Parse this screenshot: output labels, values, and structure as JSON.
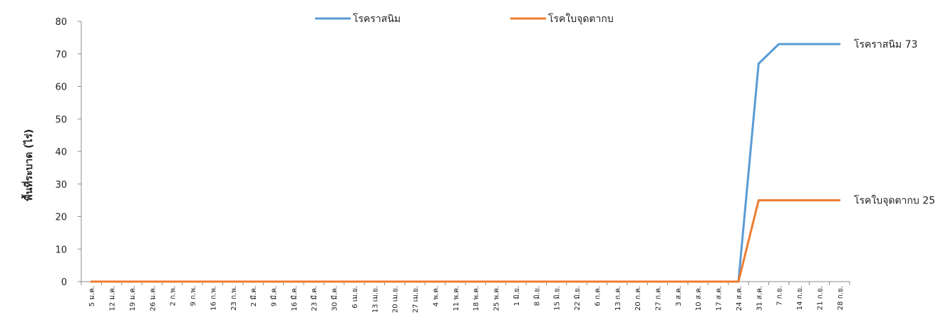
{
  "chart_data": {
    "type": "line",
    "ylabel": "พื้นที่ระบาด (ไร่)",
    "xlabel": "",
    "title": "",
    "ylim": [
      0,
      80
    ],
    "yticks": [
      0,
      10,
      20,
      30,
      40,
      50,
      60,
      70,
      80
    ],
    "grid": false,
    "legend_position": "top",
    "categories": [
      "5 ม.ค.",
      "12 ม.ค.",
      "19 ม.ค.",
      "26 ม.ค.",
      "2 ก.พ.",
      "9 ก.พ.",
      "16 ก.พ.",
      "23 ก.พ.",
      "2 มี.ค.",
      "9 มี.ค.",
      "16 มี.ค.",
      "23 มี.ค.",
      "30 มี.ค.",
      "6 เม.ย.",
      "13 เม.ย.",
      "20 เม.ย.",
      "27 เม.ย.",
      "4 พ.ค.",
      "11 พ.ค.",
      "18 พ.ค.",
      "25 พ.ค.",
      "1 มิ.ย.",
      "8 มิ.ย.",
      "15 มิ.ย.",
      "22 มิ.ย.",
      "6 ก.ค.",
      "13 ก.ค.",
      "20 ก.ค.",
      "27 ก.ค.",
      "3 ส.ค.",
      "10 ส.ค.",
      "17 ส.ค.",
      "24 ส.ค.",
      "31 ส.ค.",
      "7 ก.ย.",
      "14 ก.ย.",
      "21 ก.ย.",
      "28 ก.ย."
    ],
    "series": [
      {
        "name": "โรคราสนิม",
        "color": "#5b9bd5",
        "end_label": "โรคราสนิม 73",
        "values": [
          0,
          0,
          0,
          0,
          0,
          0,
          0,
          0,
          0,
          0,
          0,
          0,
          0,
          0,
          0,
          0,
          0,
          0,
          0,
          0,
          0,
          0,
          0,
          0,
          0,
          0,
          0,
          0,
          0,
          0,
          0,
          0,
          0,
          67,
          73,
          73,
          73,
          73
        ]
      },
      {
        "name": "โรคใบจุดตากบ",
        "color": "#ed7d31",
        "end_label": "โรคใบจุดตากบ 25",
        "values": [
          0,
          0,
          0,
          0,
          0,
          0,
          0,
          0,
          0,
          0,
          0,
          0,
          0,
          0,
          0,
          0,
          0,
          0,
          0,
          0,
          0,
          0,
          0,
          0,
          0,
          0,
          0,
          0,
          0,
          0,
          0,
          0,
          0,
          25,
          25,
          25,
          25,
          25
        ]
      }
    ]
  }
}
